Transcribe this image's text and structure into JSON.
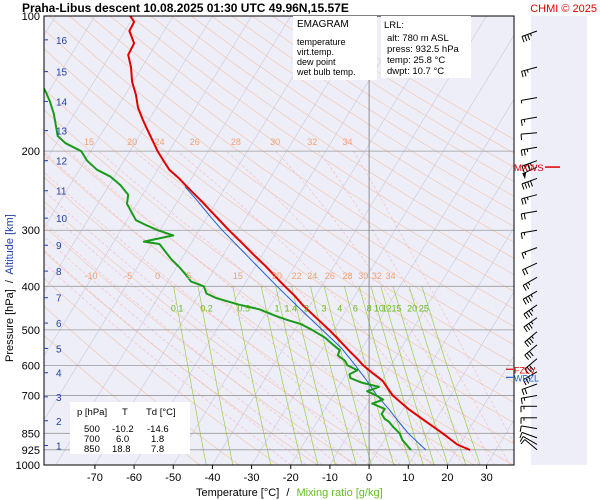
{
  "header": {
    "title": "Praha-Libus   descent   10.08.2025 01:30 UTC  49.96N,15.57E",
    "brand": "CHMI © 2025"
  },
  "legend": {
    "heading": "EMAGRAM",
    "items": [
      {
        "label": "temperature",
        "color": "#e00000"
      },
      {
        "label": "virt.temp.",
        "color": "#990000"
      },
      {
        "label": "dew point",
        "color": "#1a9a1a"
      },
      {
        "label": "wet bulb temp.",
        "color": "#1f5fd0"
      }
    ]
  },
  "lrl": {
    "heading": "LRL:",
    "lines": [
      {
        "text": "alt: 780 m ASL",
        "color": "#1f3fa8"
      },
      {
        "text": "press: 932.5 hPa",
        "color": "#000000"
      },
      {
        "text": "temp: 25.8 °C",
        "color": "#e00000"
      },
      {
        "text": "dwpt: 10.7 °C",
        "color": "#1a9a1a"
      }
    ]
  },
  "table": {
    "headers": [
      "p [hPa]",
      "T",
      "Td [°C]"
    ],
    "rows": [
      [
        "500",
        "-10.2",
        "-14.6"
      ],
      [
        "700",
        "6.0",
        "1.8"
      ],
      [
        "850",
        "18.8",
        "7.8"
      ]
    ]
  },
  "annotations": {
    "mxws": "MXWS",
    "fzlv": "FZLV",
    "wbzl": "WBZL"
  },
  "chart_data": {
    "type": "line",
    "xlabel": "Temperature [°C]",
    "xlabel_sep": "/",
    "xlabel2": "Mixing ratio [g/kg]",
    "ylabel": "Pressure [hPa]",
    "ylabel_sep": "/",
    "ylabel2": "Altitude [km]",
    "xlim": [
      -83,
      37
    ],
    "ylim": [
      1000,
      100
    ],
    "yscale": "log",
    "x_ticks": [
      -70,
      -60,
      -50,
      -40,
      -30,
      -20,
      -10,
      0,
      10,
      20,
      30
    ],
    "y_ticks": [
      100,
      200,
      300,
      400,
      500,
      600,
      700,
      850,
      925,
      1000
    ],
    "altitude_ticks": [
      {
        "km": "1",
        "p": 905
      },
      {
        "km": "2",
        "p": 797
      },
      {
        "km": "3",
        "p": 705
      },
      {
        "km": "4",
        "p": 623
      },
      {
        "km": "5",
        "p": 550
      },
      {
        "km": "6",
        "p": 483
      },
      {
        "km": "7",
        "p": 424
      },
      {
        "km": "8",
        "p": 370
      },
      {
        "km": "9",
        "p": 324
      },
      {
        "km": "10",
        "p": 282
      },
      {
        "km": "11",
        "p": 245
      },
      {
        "km": "12",
        "p": 210
      },
      {
        "km": "13",
        "p": 180
      },
      {
        "km": "14",
        "p": 155
      },
      {
        "km": "15",
        "p": 133
      },
      {
        "km": "16",
        "p": 113
      }
    ],
    "mixing_ratio_labels": [
      {
        "text": "0.1",
        "x": -49,
        "p": 455
      },
      {
        "text": "0.2",
        "x": -41.5,
        "p": 455
      },
      {
        "text": "0.5",
        "x": -32,
        "p": 455
      },
      {
        "text": "1",
        "x": -23.5,
        "p": 455
      },
      {
        "text": "1.4",
        "x": -20,
        "p": 455
      },
      {
        "text": "2",
        "x": -16,
        "p": 455
      },
      {
        "text": "3",
        "x": -11.5,
        "p": 455
      },
      {
        "text": "4",
        "x": -7.5,
        "p": 455
      },
      {
        "text": "6",
        "x": -3.5,
        "p": 455
      },
      {
        "text": "8",
        "x": 0,
        "p": 455
      },
      {
        "text": "10",
        "x": 2.5,
        "p": 455
      },
      {
        "text": "12",
        "x": 4.5,
        "p": 455
      },
      {
        "text": "15",
        "x": 7,
        "p": 455
      },
      {
        "text": "20",
        "x": 11,
        "p": 455
      },
      {
        "text": "25",
        "x": 14,
        "p": 455
      }
    ],
    "theta_labels": [
      {
        "text": "15",
        "x": -71.5,
        "p": 194
      },
      {
        "text": "20",
        "x": -60.5,
        "p": 194
      },
      {
        "text": "24",
        "x": -53.5,
        "p": 194
      },
      {
        "text": "26",
        "x": -44.5,
        "p": 194
      },
      {
        "text": "28",
        "x": -34,
        "p": 194
      },
      {
        "text": "30",
        "x": -24,
        "p": 194
      },
      {
        "text": "32",
        "x": -14.5,
        "p": 194
      },
      {
        "text": "34",
        "x": -5.5,
        "p": 194
      },
      {
        "text": "-10",
        "x": -71,
        "p": 385
      },
      {
        "text": "-5",
        "x": -61.5,
        "p": 385
      },
      {
        "text": "0",
        "x": -54,
        "p": 385
      },
      {
        "text": "5",
        "x": -46,
        "p": 385
      },
      {
        "text": "15",
        "x": -33.5,
        "p": 385
      },
      {
        "text": "20",
        "x": -23.5,
        "p": 385
      },
      {
        "text": "22",
        "x": -18.5,
        "p": 385
      },
      {
        "text": "24",
        "x": -14.5,
        "p": 385
      },
      {
        "text": "26",
        "x": -10,
        "p": 385
      },
      {
        "text": "28",
        "x": -5.5,
        "p": 385
      },
      {
        "text": "30",
        "x": -1.5,
        "p": 385
      },
      {
        "text": "32",
        "x": 2,
        "p": 385
      },
      {
        "text": "34",
        "x": 5.5,
        "p": 385
      }
    ],
    "series": [
      {
        "key": "temperature",
        "color": "#e00000",
        "width": 2,
        "points": [
          [
            926,
            25.8
          ],
          [
            900,
            22.5
          ],
          [
            850,
            18.8
          ],
          [
            800,
            14.5
          ],
          [
            750,
            10.0
          ],
          [
            700,
            6.0
          ],
          [
            650,
            3.5
          ],
          [
            620,
            0.5
          ],
          [
            600,
            -1.5
          ],
          [
            580,
            -3.0
          ],
          [
            560,
            -4.8
          ],
          [
            540,
            -6.5
          ],
          [
            520,
            -8.3
          ],
          [
            500,
            -10.2
          ],
          [
            470,
            -13.5
          ],
          [
            440,
            -17.0
          ],
          [
            420,
            -19.0
          ],
          [
            400,
            -21.5
          ],
          [
            380,
            -24.0
          ],
          [
            360,
            -26.5
          ],
          [
            340,
            -29.5
          ],
          [
            320,
            -32.5
          ],
          [
            300,
            -35.8
          ],
          [
            280,
            -39.0
          ],
          [
            260,
            -42.5
          ],
          [
            240,
            -46.5
          ],
          [
            230,
            -48.5
          ],
          [
            220,
            -51.0
          ],
          [
            210,
            -52.5
          ],
          [
            200,
            -54.0
          ],
          [
            190,
            -55.2
          ],
          [
            180,
            -56.5
          ],
          [
            170,
            -57.8
          ],
          [
            160,
            -59.0
          ],
          [
            150,
            -59.5
          ],
          [
            140,
            -60.5
          ],
          [
            130,
            -60.8
          ],
          [
            122,
            -61.5
          ],
          [
            115,
            -60.0
          ],
          [
            108,
            -61.2
          ],
          [
            103,
            -60.0
          ],
          [
            100,
            -61.0
          ]
        ]
      },
      {
        "key": "wetbulb",
        "color": "#1f5fd0",
        "width": 1,
        "points": [
          [
            926,
            14.5
          ],
          [
            900,
            13.0
          ],
          [
            850,
            10.0
          ],
          [
            800,
            7.5
          ],
          [
            750,
            5.0
          ],
          [
            700,
            2.0
          ],
          [
            650,
            -0.5
          ],
          [
            600,
            -3.5
          ],
          [
            550,
            -7.0
          ],
          [
            500,
            -12.0
          ],
          [
            450,
            -17.5
          ],
          [
            400,
            -23.5
          ],
          [
            350,
            -30.0
          ],
          [
            300,
            -37.5
          ],
          [
            280,
            -40.5
          ],
          [
            260,
            -43.5
          ],
          [
            240,
            -47.0
          ]
        ]
      },
      {
        "key": "dewpoint",
        "color": "#1a9a1a",
        "width": 2,
        "points": [
          [
            926,
            10.7
          ],
          [
            900,
            9.5
          ],
          [
            880,
            8.5
          ],
          [
            850,
            7.8
          ],
          [
            820,
            6.0
          ],
          [
            800,
            5.0
          ],
          [
            790,
            4.0
          ],
          [
            770,
            3.2
          ],
          [
            750,
            4.0
          ],
          [
            730,
            0.8
          ],
          [
            715,
            3.6
          ],
          [
            700,
            1.8
          ],
          [
            685,
            -0.5
          ],
          [
            670,
            2.5
          ],
          [
            655,
            -2.0
          ],
          [
            640,
            -4.8
          ],
          [
            628,
            -5.0
          ],
          [
            615,
            -3.0
          ],
          [
            600,
            -5.5
          ],
          [
            585,
            -6.2
          ],
          [
            570,
            -8.0
          ],
          [
            555,
            -7.5
          ],
          [
            540,
            -9.2
          ],
          [
            520,
            -11.3
          ],
          [
            500,
            -14.6
          ],
          [
            485,
            -17.5
          ],
          [
            475,
            -21.0
          ],
          [
            465,
            -24.0
          ],
          [
            450,
            -28.0
          ],
          [
            440,
            -33.0
          ],
          [
            425,
            -39.0
          ],
          [
            415,
            -41.5
          ],
          [
            400,
            -42.2
          ],
          [
            390,
            -45.5
          ],
          [
            375,
            -47.0
          ],
          [
            362,
            -48.5
          ],
          [
            348,
            -50.5
          ],
          [
            335,
            -52.0
          ],
          [
            322,
            -53.5
          ],
          [
            318,
            -57.5
          ],
          [
            308,
            -50.0
          ],
          [
            300,
            -54.0
          ],
          [
            292,
            -57.0
          ],
          [
            285,
            -59.5
          ],
          [
            275,
            -60.5
          ],
          [
            262,
            -61.8
          ],
          [
            250,
            -61.5
          ],
          [
            238,
            -63.5
          ],
          [
            228,
            -66.0
          ],
          [
            220,
            -69.5
          ],
          [
            210,
            -72.0
          ],
          [
            200,
            -73.5
          ],
          [
            192,
            -77.5
          ],
          [
            185,
            -79.5
          ],
          [
            175,
            -80.0
          ],
          [
            165,
            -80.5
          ],
          [
            155,
            -81.5
          ],
          [
            148,
            -82.5
          ],
          [
            140,
            -84.0
          ]
        ]
      }
    ],
    "markers": [
      {
        "key": "mxws",
        "p": 217,
        "color": "#e00000"
      },
      {
        "key": "fzlv",
        "p": 612,
        "color": "#e00000"
      },
      {
        "key": "wbzl",
        "p": 638,
        "color": "#1f5fd0"
      }
    ],
    "wind_barbs": [
      {
        "p": 108,
        "dir": 250,
        "kt": 35
      },
      {
        "p": 130,
        "dir": 255,
        "kt": 25
      },
      {
        "p": 152,
        "dir": 260,
        "kt": 5
      },
      {
        "p": 168,
        "dir": 260,
        "kt": 15
      },
      {
        "p": 182,
        "dir": 265,
        "kt": 10
      },
      {
        "p": 196,
        "dir": 260,
        "kt": 25
      },
      {
        "p": 210,
        "dir": 250,
        "kt": 35
      },
      {
        "p": 217,
        "dir": 245,
        "kt": 50
      },
      {
        "p": 230,
        "dir": 250,
        "kt": 40
      },
      {
        "p": 250,
        "dir": 255,
        "kt": 25
      },
      {
        "p": 272,
        "dir": 260,
        "kt": 20
      },
      {
        "p": 300,
        "dir": 260,
        "kt": 15
      },
      {
        "p": 328,
        "dir": 250,
        "kt": 15
      },
      {
        "p": 355,
        "dir": 245,
        "kt": 20
      },
      {
        "p": 382,
        "dir": 240,
        "kt": 25
      },
      {
        "p": 410,
        "dir": 240,
        "kt": 35
      },
      {
        "p": 440,
        "dir": 235,
        "kt": 35
      },
      {
        "p": 470,
        "dir": 235,
        "kt": 35
      },
      {
        "p": 505,
        "dir": 230,
        "kt": 35
      },
      {
        "p": 540,
        "dir": 230,
        "kt": 30
      },
      {
        "p": 580,
        "dir": 230,
        "kt": 30
      },
      {
        "p": 620,
        "dir": 240,
        "kt": 25
      },
      {
        "p": 660,
        "dir": 250,
        "kt": 20
      },
      {
        "p": 700,
        "dir": 260,
        "kt": 15
      },
      {
        "p": 740,
        "dir": 270,
        "kt": 15
      },
      {
        "p": 785,
        "dir": 270,
        "kt": 15
      },
      {
        "p": 830,
        "dir": 280,
        "kt": 10
      },
      {
        "p": 870,
        "dir": 290,
        "kt": 10
      },
      {
        "p": 900,
        "dir": 300,
        "kt": 10
      },
      {
        "p": 925,
        "dir": 310,
        "kt": 10
      }
    ]
  }
}
